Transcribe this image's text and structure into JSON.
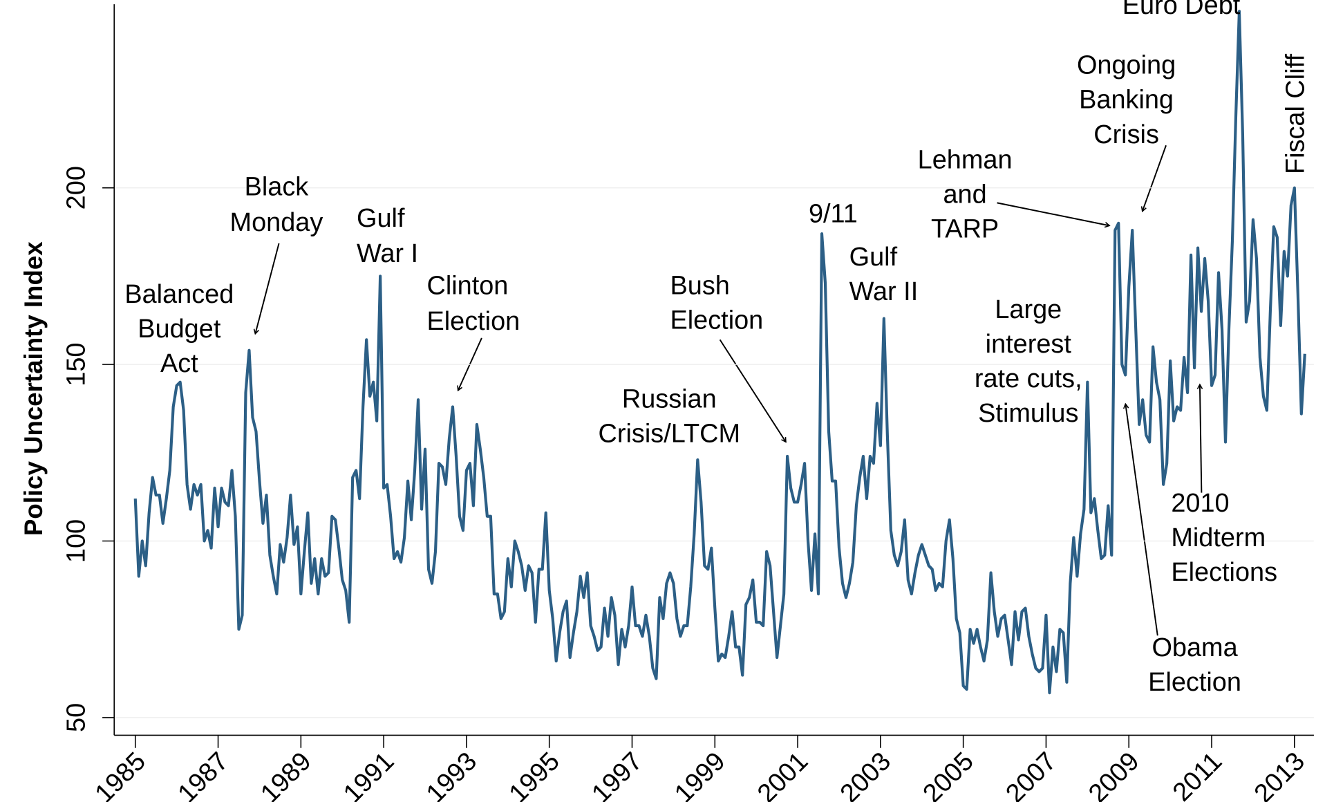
{
  "chart_data": {
    "type": "line",
    "y_label": "Policy Uncertainty Index",
    "color": "#2c5f86",
    "grid": true,
    "ylim": [
      45,
      252
    ],
    "yticks": [
      50,
      100,
      150,
      200
    ],
    "categories": [
      "1985",
      null,
      null,
      null,
      null,
      null,
      null,
      null,
      null,
      null,
      null,
      null,
      null,
      null,
      null,
      null,
      null,
      null,
      null,
      null,
      null,
      null,
      null,
      null,
      "1987",
      null,
      null,
      null,
      null,
      null,
      null,
      null,
      null,
      null,
      null,
      null,
      null,
      null,
      null,
      null,
      null,
      null,
      null,
      null,
      null,
      null,
      null,
      null,
      "1989",
      null,
      null,
      null,
      null,
      null,
      null,
      null,
      null,
      null,
      null,
      null,
      null,
      null,
      null,
      null,
      null,
      null,
      null,
      null,
      null,
      null,
      null,
      null,
      "1991",
      null,
      null,
      null,
      null,
      null,
      null,
      null,
      null,
      null,
      null,
      null,
      null,
      null,
      null,
      null,
      null,
      null,
      null,
      null,
      null,
      null,
      null,
      null,
      "1993",
      null,
      null,
      null,
      null,
      null,
      null,
      null,
      null,
      null,
      null,
      null,
      null,
      null,
      null,
      null,
      null,
      null,
      null,
      null,
      null,
      null,
      null,
      null,
      "1995",
      null,
      null,
      null,
      null,
      null,
      null,
      null,
      null,
      null,
      null,
      null,
      null,
      null,
      null,
      null,
      null,
      null,
      null,
      null,
      null,
      null,
      null,
      null,
      "1997",
      null,
      null,
      null,
      null,
      null,
      null,
      null,
      null,
      null,
      null,
      null,
      null,
      null,
      null,
      null,
      null,
      null,
      null,
      null,
      null,
      null,
      null,
      null,
      "1999",
      null,
      null,
      null,
      null,
      null,
      null,
      null,
      null,
      null,
      null,
      null,
      null,
      null,
      null,
      null,
      null,
      null,
      null,
      null,
      null,
      null,
      null,
      null,
      "2001",
      null,
      null,
      null,
      null,
      null,
      null,
      null,
      null,
      null,
      null,
      null,
      null,
      null,
      null,
      null,
      null,
      null,
      null,
      null,
      null,
      null,
      null,
      null,
      "2003",
      null,
      null,
      null,
      null,
      null,
      null,
      null,
      null,
      null,
      null,
      null,
      null,
      null,
      null,
      null,
      null,
      null,
      null,
      null,
      null,
      null,
      null,
      null,
      "2005",
      null,
      null,
      null,
      null,
      null,
      null,
      null,
      null,
      null,
      null,
      null,
      null,
      null,
      null,
      null,
      null,
      null,
      null,
      null,
      null,
      null,
      null,
      null,
      "2007",
      null,
      null,
      null,
      null,
      null,
      null,
      null,
      null,
      null,
      null,
      null,
      null,
      null,
      null,
      null,
      null,
      null,
      null,
      null,
      null,
      null,
      null,
      null,
      "2009",
      null,
      null,
      null,
      null,
      null,
      null,
      null,
      null,
      null,
      null,
      null,
      null,
      null,
      null,
      null,
      null,
      null,
      null,
      null,
      null,
      null,
      null,
      null,
      "2011",
      null,
      null,
      null,
      null,
      null,
      null,
      null,
      null,
      null,
      null,
      null,
      null,
      null,
      null,
      null,
      null,
      null,
      null,
      null,
      null,
      null,
      null,
      null,
      "2013",
      null,
      null,
      null
    ],
    "values": [
      112,
      90,
      100,
      93,
      108,
      118,
      113,
      113,
      105,
      112,
      120,
      138,
      144,
      145,
      137,
      116,
      109,
      116,
      113,
      116,
      100,
      103,
      98,
      115,
      104,
      115,
      111,
      110,
      120,
      107,
      75,
      79,
      142,
      154,
      135,
      131,
      117,
      105,
      113,
      96,
      90,
      85,
      99,
      94,
      101,
      113,
      99,
      104,
      85,
      97,
      108,
      88,
      95,
      85,
      95,
      90,
      91,
      107,
      106,
      98,
      89,
      86,
      77,
      118,
      120,
      112,
      138,
      157,
      141,
      145,
      134,
      175,
      115,
      116,
      107,
      95,
      97,
      94,
      101,
      117,
      106,
      120,
      140,
      109,
      126,
      92,
      88,
      97,
      122,
      121,
      116,
      129,
      138,
      124,
      107,
      103,
      120,
      122,
      110,
      133,
      126,
      118,
      107,
      107,
      85,
      85,
      78,
      80,
      95,
      87,
      100,
      97,
      93,
      86,
      93,
      91,
      77,
      92,
      92,
      108,
      86,
      78,
      66,
      74,
      80,
      83,
      67,
      74,
      80,
      90,
      84,
      91,
      76,
      73,
      69,
      70,
      81,
      73,
      84,
      79,
      65,
      75,
      70,
      76,
      87,
      76,
      76,
      73,
      79,
      73,
      64,
      61,
      84,
      78,
      88,
      91,
      88,
      78,
      73,
      76,
      76,
      87,
      102,
      123,
      111,
      93,
      92,
      98,
      81,
      66,
      68,
      67,
      73,
      80,
      70,
      70,
      62,
      82,
      84,
      89,
      77,
      77,
      76,
      97,
      93,
      80,
      67,
      76,
      85,
      124,
      115,
      111,
      111,
      116,
      122,
      100,
      86,
      102,
      85,
      187,
      173,
      131,
      117,
      117,
      98,
      88,
      84,
      88,
      94,
      110,
      118,
      124,
      112,
      124,
      122,
      139,
      127,
      163,
      130,
      103,
      96,
      93,
      97,
      106,
      89,
      85,
      91,
      96,
      99,
      96,
      93,
      92,
      86,
      88,
      87,
      100,
      106,
      95,
      78,
      74,
      59,
      58,
      75,
      71,
      75,
      70,
      66,
      72,
      91,
      80,
      73,
      78,
      79,
      72,
      65,
      80,
      72,
      80,
      81,
      73,
      68,
      64,
      63,
      64,
      79,
      57,
      70,
      63,
      75,
      74,
      60,
      88,
      101,
      90,
      102,
      109,
      145,
      108,
      112,
      103,
      95,
      96,
      110,
      96,
      188,
      190,
      150,
      147,
      172,
      188,
      160,
      133,
      140,
      130,
      128,
      155,
      145,
      140,
      116,
      122,
      151,
      134,
      138,
      137,
      152,
      142,
      181,
      149,
      183,
      165,
      180,
      168,
      144,
      147,
      176,
      160,
      128,
      160,
      185,
      220,
      250,
      215,
      162,
      168,
      191,
      180,
      152,
      141,
      137,
      165,
      189,
      186,
      161,
      182,
      175,
      195,
      200,
      170,
      136,
      153
    ],
    "annotations": [
      [
        "Balanced",
        "Budget",
        "Act"
      ],
      [
        "Black",
        "Monday"
      ],
      [
        "Gulf",
        "War I"
      ],
      [
        "Clinton",
        "Election"
      ],
      [
        "Bush",
        "Election"
      ],
      [
        "Russian",
        "Crisis/LTCM"
      ],
      [
        "9/11"
      ],
      [
        "Gulf",
        "War II"
      ],
      [
        "Lehman",
        "and",
        "TARP"
      ],
      [
        "Ongoing",
        "Banking",
        "Crisis"
      ],
      [
        "Euro Debt"
      ],
      [
        "Fiscal Cliff"
      ],
      [
        "Large",
        "interest",
        "rate cuts,",
        "Stimulus"
      ],
      [
        "Obama",
        "Election"
      ],
      [
        "2010",
        "Midterm",
        "Elections"
      ]
    ]
  }
}
